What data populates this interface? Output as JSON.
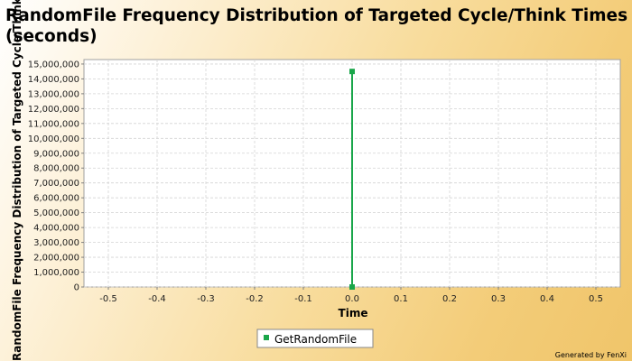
{
  "chart_data": {
    "type": "line",
    "title": "RandomFile Frequency Distribution of Targeted Cycle/Think Times (seconds)",
    "xlabel": "Time",
    "ylabel": "RandomFile Frequency Distribution of Targeted Cycle/Think Times (seconds)",
    "xlim": [
      -0.55,
      0.55
    ],
    "ylim": [
      0,
      15300000
    ],
    "xticks": [
      "-0.5",
      "-0.4",
      "-0.3",
      "-0.2",
      "-0.1",
      "0.0",
      "0.1",
      "0.2",
      "0.3",
      "0.4",
      "0.5"
    ],
    "yticks": [
      "0",
      "1,000,000",
      "2,000,000",
      "3,000,000",
      "4,000,000",
      "5,000,000",
      "6,000,000",
      "7,000,000",
      "8,000,000",
      "9,000,000",
      "10,000,000",
      "11,000,000",
      "12,000,000",
      "13,000,000",
      "14,000,000",
      "15,000,000"
    ],
    "series": [
      {
        "name": "GetRandomFile",
        "color": "#1aa64a",
        "points": [
          [
            0.0,
            0
          ],
          [
            0.0,
            14500000
          ]
        ]
      }
    ],
    "grid": true,
    "legend": "bottom-center"
  },
  "footer": "Generated by FenXi"
}
